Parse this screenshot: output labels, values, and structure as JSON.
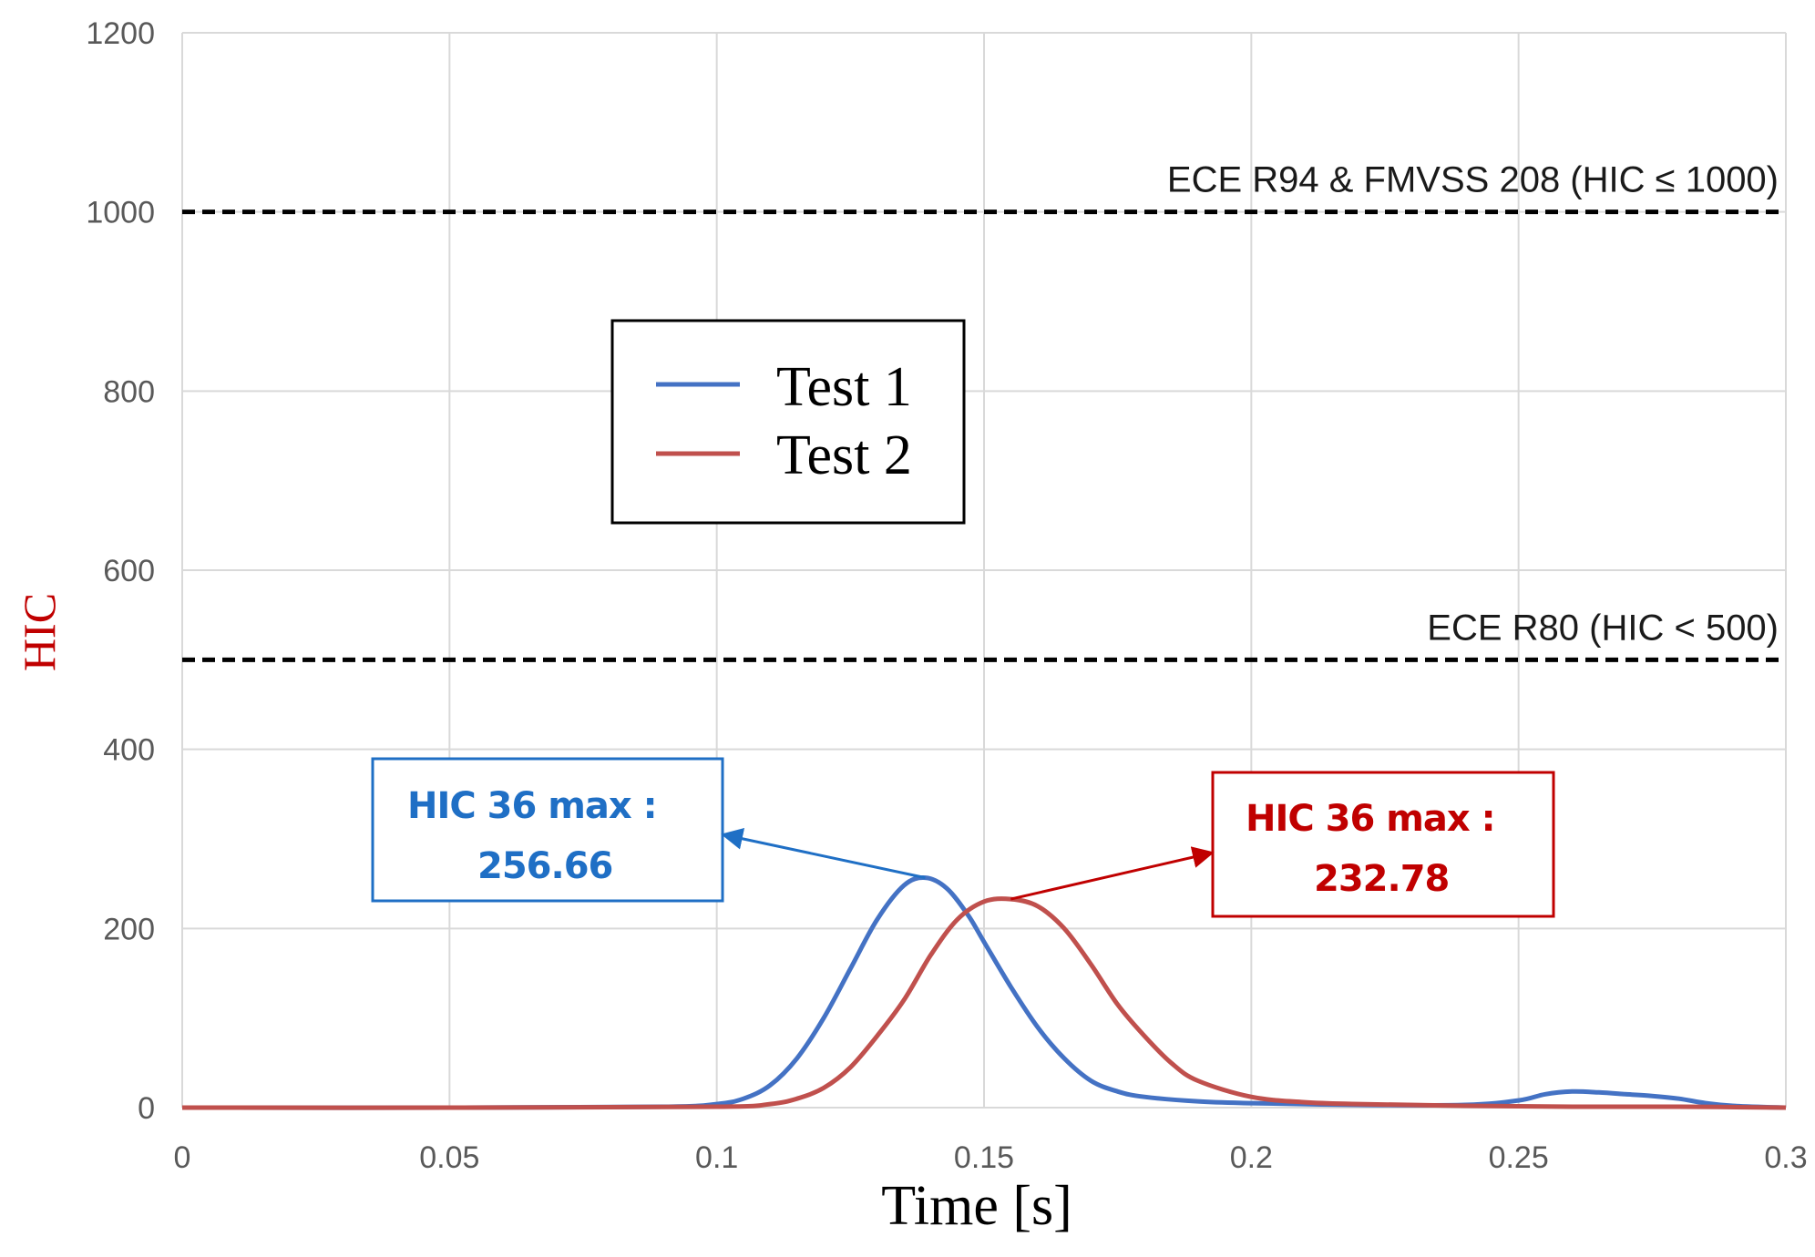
{
  "chart_data": {
    "type": "line",
    "xlabel": "Time [s]",
    "ylabel": "HIC",
    "xlim": [
      0,
      0.3
    ],
    "ylim": [
      0,
      1200
    ],
    "x_ticks": [
      "0",
      "0.05",
      "0.1",
      "0.15",
      "0.2",
      "0.25",
      "0.3"
    ],
    "y_ticks": [
      "0",
      "200",
      "400",
      "600",
      "800",
      "1000",
      "1200"
    ],
    "grid": true,
    "legend_position": "upper-center",
    "series": [
      {
        "name": "Test 1",
        "color": "#4472C4",
        "x": [
          0,
          0.05,
          0.09,
          0.1,
          0.105,
          0.11,
          0.115,
          0.12,
          0.125,
          0.13,
          0.135,
          0.139,
          0.143,
          0.147,
          0.15,
          0.155,
          0.16,
          0.165,
          0.17,
          0.175,
          0.18,
          0.19,
          0.2,
          0.22,
          0.24,
          0.25,
          0.255,
          0.26,
          0.265,
          0.27,
          0.275,
          0.28,
          0.285,
          0.29,
          0.3
        ],
        "y": [
          0,
          0,
          1,
          4,
          10,
          25,
          55,
          100,
          155,
          210,
          248,
          256.66,
          245,
          215,
          185,
          135,
          90,
          55,
          30,
          18,
          12,
          7,
          5,
          3,
          3,
          8,
          15,
          18,
          17,
          15,
          13,
          10,
          5,
          2,
          0
        ]
      },
      {
        "name": "Test 2",
        "color": "#C0504D",
        "x": [
          0,
          0.05,
          0.1,
          0.11,
          0.115,
          0.12,
          0.125,
          0.13,
          0.135,
          0.14,
          0.145,
          0.15,
          0.155,
          0.16,
          0.165,
          0.17,
          0.175,
          0.18,
          0.185,
          0.19,
          0.2,
          0.21,
          0.22,
          0.24,
          0.26,
          0.28,
          0.3
        ],
        "y": [
          0,
          0,
          1,
          4,
          10,
          22,
          45,
          80,
          120,
          170,
          210,
          230,
          232.78,
          225,
          200,
          160,
          115,
          80,
          50,
          30,
          12,
          6,
          4,
          2,
          1,
          1,
          0
        ]
      }
    ],
    "reference_lines": [
      {
        "y": 1000,
        "label": "ECE R94 & FMVSS 208 (HIC ≤ 1000)",
        "color": "#000000",
        "style": "dashed"
      },
      {
        "y": 500,
        "label": "ECE R80 (HIC < 500)",
        "color": "#000000",
        "style": "dashed"
      }
    ],
    "annotations": [
      {
        "series": "Test 1",
        "line1": "HIC 36 max :",
        "line2": "256.66",
        "x": 0.139,
        "y": 256.66,
        "color": "#1F6FC5"
      },
      {
        "series": "Test 2",
        "line1": "HIC 36 max :",
        "line2": "232.78",
        "x": 0.155,
        "y": 232.78,
        "color": "#C00000"
      }
    ],
    "ylabel_color": "#C00000"
  }
}
